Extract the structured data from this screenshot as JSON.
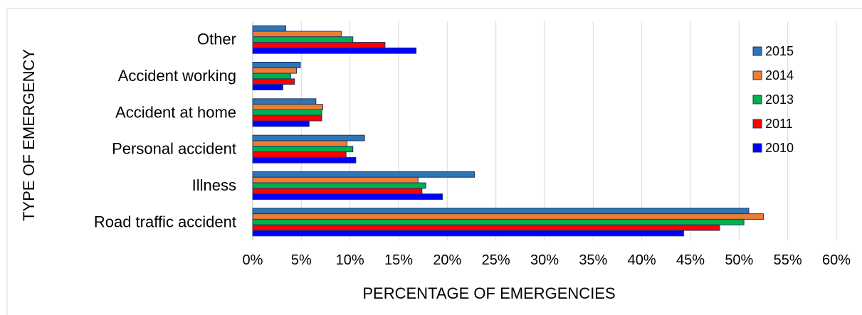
{
  "chart_data": {
    "type": "bar",
    "orientation": "horizontal",
    "title": "",
    "xlabel": "PERCENTAGE OF EMERGENCIES",
    "ylabel": "TYPE OF EMERGENCY",
    "xlim": [
      0,
      60
    ],
    "x_ticks": [
      "0%",
      "5%",
      "10%",
      "15%",
      "20%",
      "25%",
      "30%",
      "35%",
      "40%",
      "45%",
      "50%",
      "55%",
      "60%"
    ],
    "grid": "vertical",
    "legend_position": "right",
    "categories": [
      "Other",
      "Accident working",
      "Accident at home",
      "Personal accident ",
      "Illness",
      "Road traffic accident"
    ],
    "series": [
      {
        "name": "2015",
        "color": "#2e75b6",
        "values": [
          3.4,
          4.9,
          6.5,
          11.5,
          22.8,
          51.0
        ]
      },
      {
        "name": "2014",
        "color": "#ed7d31",
        "values": [
          9.1,
          4.5,
          7.2,
          9.7,
          17.0,
          52.5
        ]
      },
      {
        "name": "2013",
        "color": "#00b050",
        "values": [
          10.3,
          3.9,
          7.1,
          10.3,
          17.8,
          50.5
        ]
      },
      {
        "name": "2011",
        "color": "#ff0000",
        "values": [
          13.6,
          4.3,
          7.1,
          9.6,
          17.4,
          48.0
        ]
      },
      {
        "name": "2010",
        "color": "#0000ff",
        "values": [
          16.8,
          3.1,
          5.8,
          10.6,
          19.5,
          44.3
        ]
      }
    ]
  }
}
